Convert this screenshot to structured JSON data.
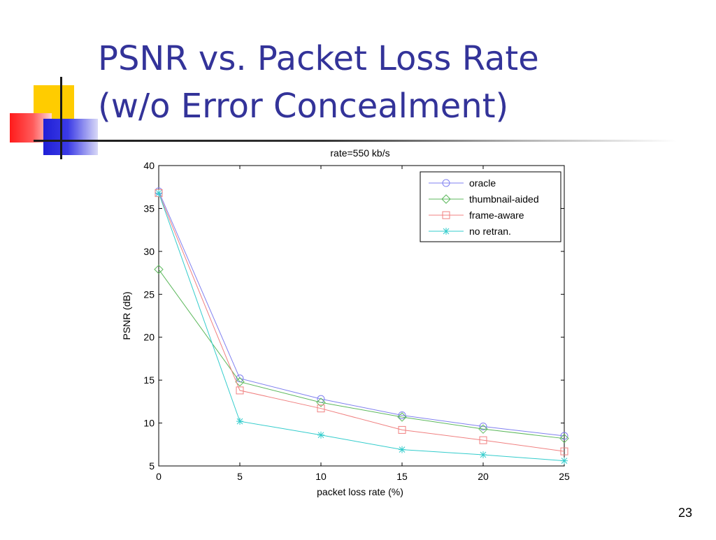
{
  "slide": {
    "title_line1": "PSNR vs. Packet Loss Rate",
    "title_line2": "(w/o Error Concealment)",
    "page_number": "23"
  },
  "colors": {
    "title": "#333399",
    "oracle": "#8080f0",
    "thumbnail_aided": "#5cb85c",
    "frame_aware": "#f08080",
    "no_retran": "#33cccc"
  },
  "chart_data": {
    "type": "line",
    "title": "rate=550 kb/s",
    "xlabel": "packet loss rate (%)",
    "ylabel": "PSNR (dB)",
    "x": [
      0,
      5,
      10,
      15,
      20,
      25
    ],
    "xlim": [
      0,
      25
    ],
    "ylim": [
      5,
      40
    ],
    "xticks": [
      "0",
      "5",
      "10",
      "15",
      "20",
      "25"
    ],
    "yticks": [
      "5",
      "10",
      "15",
      "20",
      "25",
      "30",
      "35",
      "40"
    ],
    "grid": false,
    "legend_position": "top-right",
    "series": [
      {
        "name": "oracle",
        "marker": "circle",
        "values": [
          37.0,
          15.2,
          12.8,
          10.9,
          9.6,
          8.5
        ]
      },
      {
        "name": "thumbnail-aided",
        "marker": "diamond",
        "values": [
          27.9,
          14.8,
          12.4,
          10.7,
          9.3,
          8.2
        ]
      },
      {
        "name": "frame-aware",
        "marker": "square",
        "values": [
          36.8,
          13.8,
          11.7,
          9.2,
          8.0,
          6.7
        ]
      },
      {
        "name": "no retran.",
        "marker": "star",
        "values": [
          36.8,
          10.2,
          8.6,
          6.9,
          6.3,
          5.6
        ]
      }
    ]
  }
}
